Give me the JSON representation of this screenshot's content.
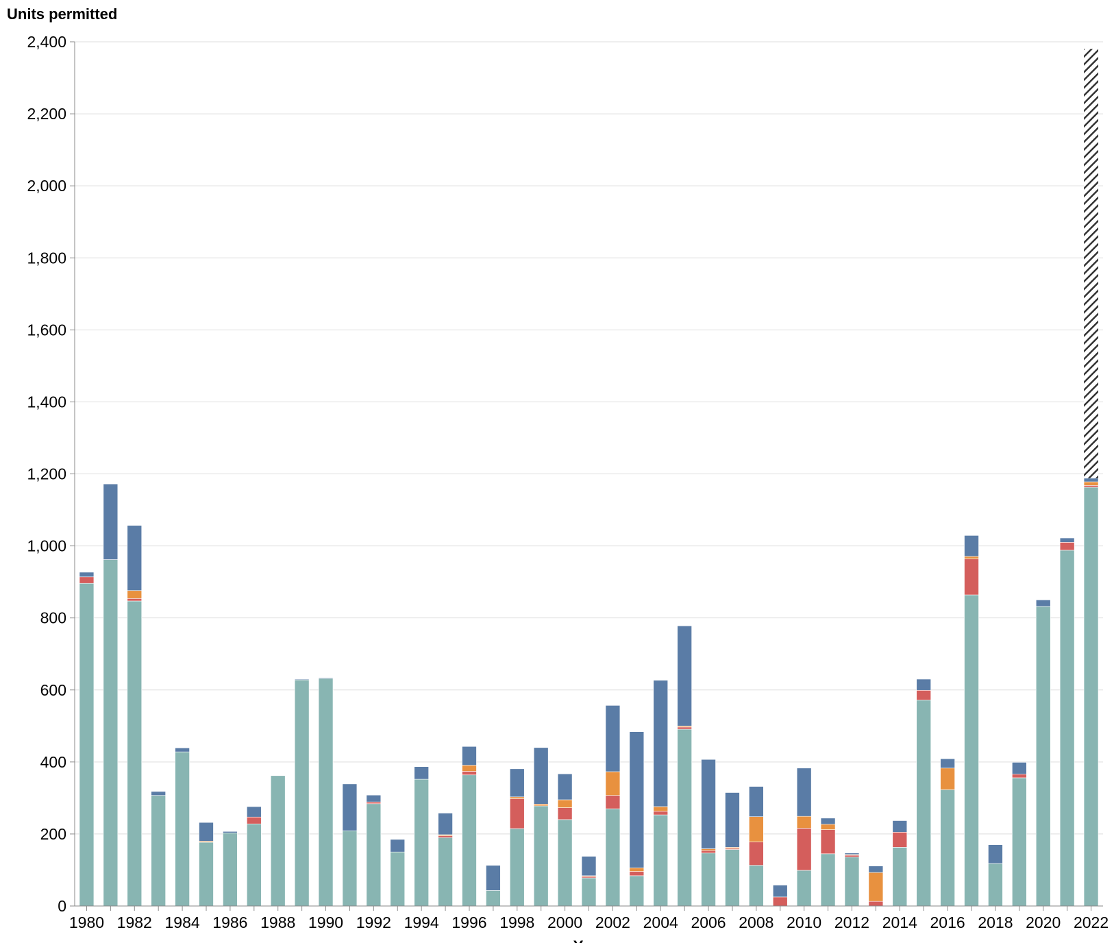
{
  "chart_data": {
    "type": "bar",
    "stacked": true,
    "ylabel": "Units permitted",
    "xlabel": "Year",
    "ylim": [
      0,
      2400
    ],
    "y_ticks": [
      "0",
      "200",
      "400",
      "600",
      "800",
      "1,000",
      "1,200",
      "1,400",
      "1,600",
      "1,800",
      "2,000",
      "2,200",
      "2,400"
    ],
    "y_tick_values": [
      0,
      200,
      400,
      600,
      800,
      1000,
      1200,
      1400,
      1600,
      1800,
      2000,
      2200,
      2400
    ],
    "x_tick_labels": [
      "1980",
      "1982",
      "1984",
      "1986",
      "1988",
      "1990",
      "1992",
      "1994",
      "1996",
      "1998",
      "2000",
      "2002",
      "2004",
      "2006",
      "2008",
      "2010",
      "2012",
      "2014",
      "2016",
      "2018",
      "2020",
      "2022"
    ],
    "grid": true,
    "legend": "none",
    "categories": [
      1980,
      1981,
      1982,
      1983,
      1984,
      1985,
      1986,
      1987,
      1988,
      1989,
      1990,
      1991,
      1992,
      1993,
      1994,
      1995,
      1996,
      1997,
      1998,
      1999,
      2000,
      2001,
      2002,
      2003,
      2004,
      2005,
      2006,
      2007,
      2008,
      2009,
      2010,
      2011,
      2012,
      2013,
      2014,
      2015,
      2016,
      2017,
      2018,
      2019,
      2020,
      2021,
      2022
    ],
    "series": [
      {
        "color": "#88b5b2",
        "values": [
          896,
          962,
          847,
          307,
          428,
          177,
          203,
          228,
          362,
          628,
          632,
          209,
          284,
          150,
          352,
          190,
          364,
          43,
          215,
          278,
          240,
          78,
          270,
          84,
          253,
          491,
          147,
          157,
          113,
          0,
          99,
          145,
          136,
          0,
          163,
          572,
          323,
          864,
          118,
          356,
          832,
          988,
          1163
        ]
      },
      {
        "color": "#d45e5c",
        "values": [
          18,
          0,
          7,
          0,
          0,
          0,
          0,
          19,
          0,
          0,
          0,
          0,
          5,
          0,
          0,
          5,
          10,
          0,
          83,
          0,
          33,
          4,
          37,
          12,
          10,
          6,
          7,
          3,
          65,
          25,
          117,
          67,
          5,
          13,
          42,
          27,
          0,
          100,
          0,
          10,
          0,
          22,
          5
        ]
      },
      {
        "color": "#e8913f",
        "values": [
          0,
          0,
          22,
          0,
          0,
          3,
          0,
          0,
          0,
          0,
          0,
          0,
          0,
          0,
          0,
          3,
          17,
          0,
          5,
          5,
          22,
          2,
          66,
          10,
          13,
          3,
          5,
          3,
          70,
          0,
          33,
          15,
          2,
          80,
          0,
          0,
          60,
          7,
          0,
          0,
          0,
          0,
          10
        ]
      },
      {
        "color": "#5a7ca6",
        "values": [
          13,
          210,
          181,
          11,
          11,
          52,
          4,
          29,
          0,
          2,
          2,
          130,
          19,
          35,
          35,
          60,
          52,
          70,
          78,
          157,
          72,
          54,
          184,
          378,
          351,
          278,
          248,
          152,
          84,
          33,
          134,
          17,
          4,
          18,
          32,
          31,
          26,
          58,
          52,
          33,
          18,
          12,
          10
        ]
      },
      {
        "name": "hatched",
        "color": "#333333",
        "values": [
          0,
          0,
          0,
          0,
          0,
          0,
          0,
          0,
          0,
          0,
          0,
          0,
          0,
          0,
          0,
          0,
          0,
          0,
          0,
          0,
          0,
          0,
          0,
          0,
          0,
          0,
          0,
          0,
          0,
          0,
          0,
          0,
          0,
          0,
          0,
          0,
          0,
          0,
          0,
          0,
          0,
          0,
          1192
        ]
      }
    ]
  }
}
